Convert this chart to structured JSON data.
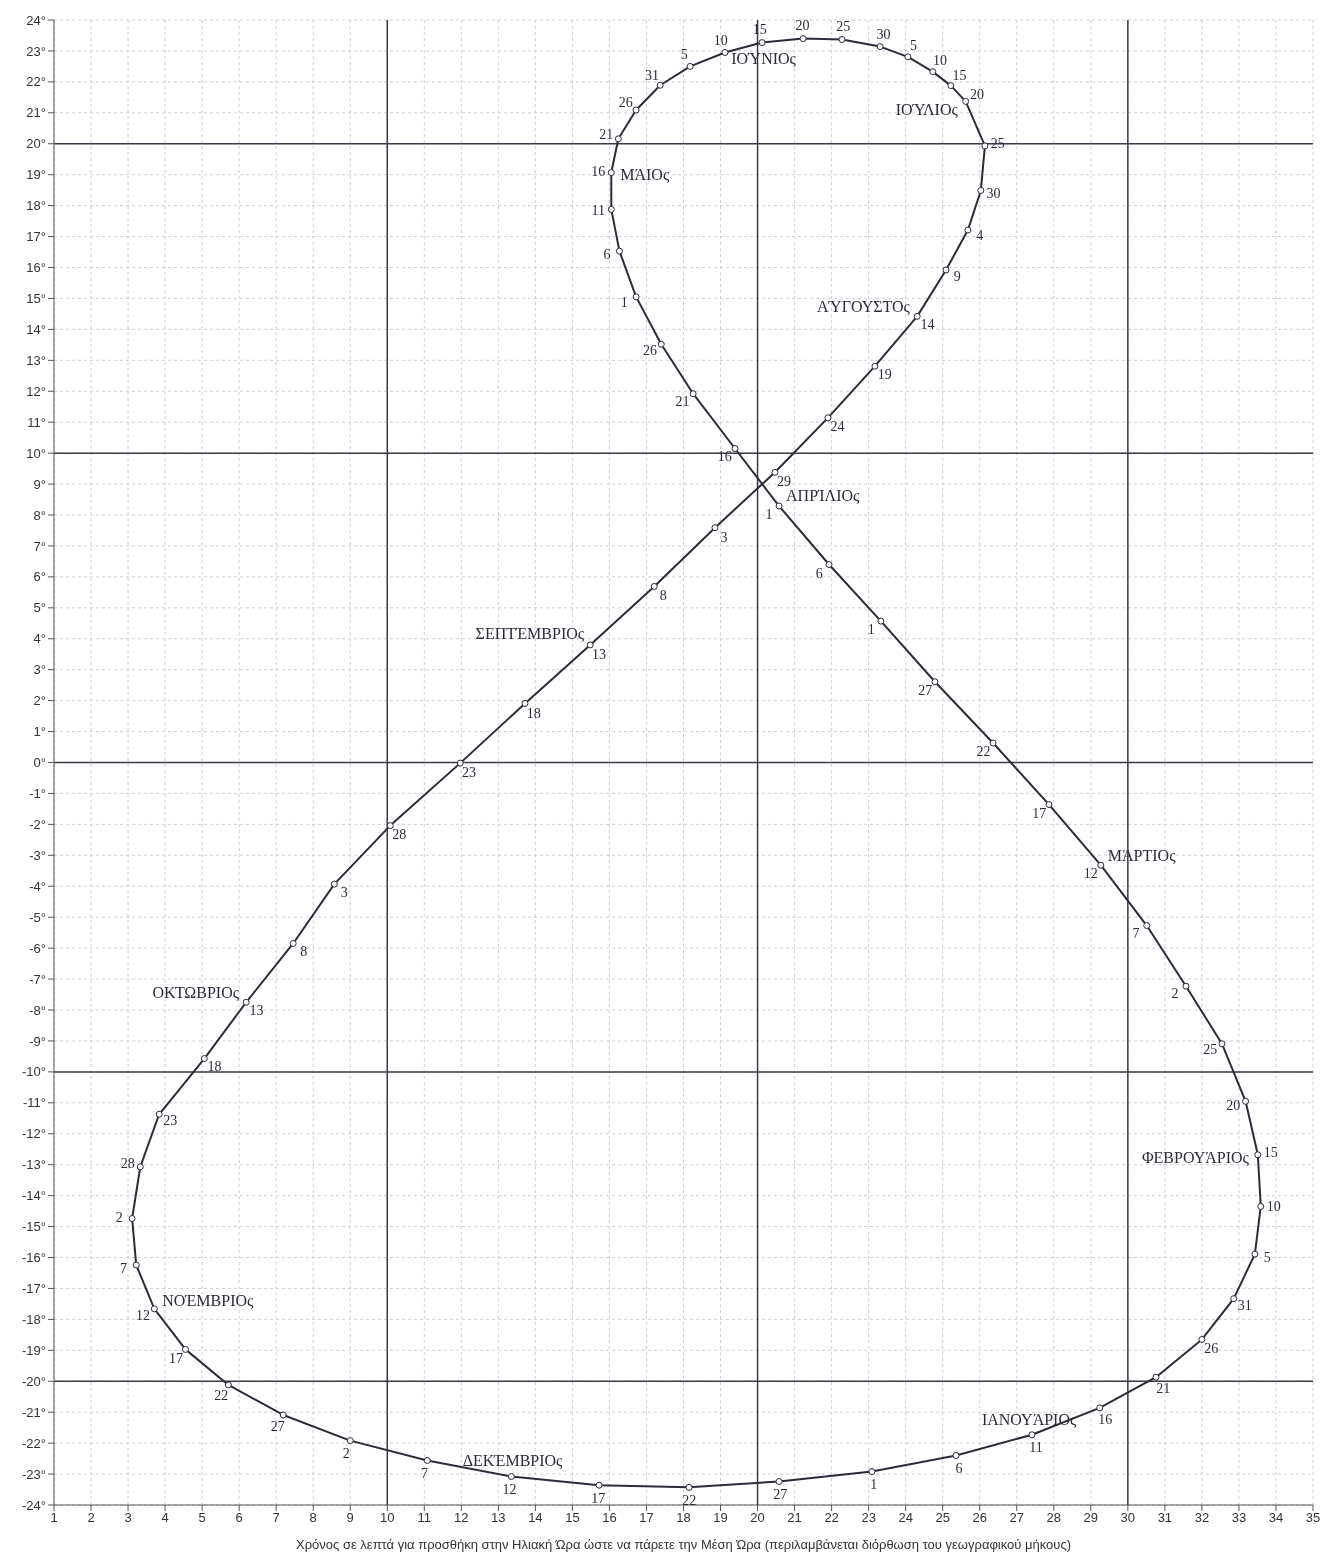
{
  "chart_data": {
    "type": "scatter",
    "xlabel": "Χρόνος σε λεπτά για προσθήκη στην Ηλιακή Ώρα ώστε να πάρετε την Μέση Ώρα (περιλαμβάνεται διόρθωση του γεωγραφικού μήκους)",
    "xlim": [
      1,
      35
    ],
    "xticks": [
      1,
      2,
      3,
      4,
      5,
      6,
      7,
      8,
      9,
      10,
      11,
      12,
      13,
      14,
      15,
      16,
      17,
      18,
      19,
      20,
      21,
      22,
      23,
      24,
      25,
      26,
      27,
      28,
      29,
      30,
      31,
      32,
      33,
      34,
      35
    ],
    "ylim": [
      -24,
      24
    ],
    "yticks": [
      {
        "value": -24,
        "label": "-24°"
      },
      {
        "value": -23,
        "label": "-23°"
      },
      {
        "value": -22,
        "label": "-22°"
      },
      {
        "value": -21,
        "label": "-21°"
      },
      {
        "value": -20,
        "label": "-20°"
      },
      {
        "value": -19,
        "label": "-19°"
      },
      {
        "value": -18,
        "label": "-18°"
      },
      {
        "value": -17,
        "label": "-17°"
      },
      {
        "value": -16,
        "label": "-16°"
      },
      {
        "value": -15,
        "label": "-15°"
      },
      {
        "value": -14,
        "label": "-14°"
      },
      {
        "value": -13,
        "label": "-13°"
      },
      {
        "value": -12,
        "label": "-12°"
      },
      {
        "value": -11,
        "label": "-11°"
      },
      {
        "value": -10,
        "label": "-10°"
      },
      {
        "value": -9,
        "label": "-9°"
      },
      {
        "value": -8,
        "label": "-8°"
      },
      {
        "value": -7,
        "label": "-7°"
      },
      {
        "value": -6,
        "label": "-6°"
      },
      {
        "value": -5,
        "label": "-5°"
      },
      {
        "value": -4,
        "label": "-4°"
      },
      {
        "value": -3,
        "label": "-3°"
      },
      {
        "value": -2,
        "label": "-2°"
      },
      {
        "value": -1,
        "label": "-1°"
      },
      {
        "value": 0,
        "label": "0°"
      },
      {
        "value": 1,
        "label": "1°"
      },
      {
        "value": 2,
        "label": "2°"
      },
      {
        "value": 3,
        "label": "3°"
      },
      {
        "value": 4,
        "label": "4°"
      },
      {
        "value": 5,
        "label": "5°"
      },
      {
        "value": 6,
        "label": "6°"
      },
      {
        "value": 7,
        "label": "7°"
      },
      {
        "value": 8,
        "label": "8°"
      },
      {
        "value": 9,
        "label": "9°"
      },
      {
        "value": 10,
        "label": "10°"
      },
      {
        "value": 11,
        "label": "11°"
      },
      {
        "value": 12,
        "label": "12°"
      },
      {
        "value": 13,
        "label": "13°"
      },
      {
        "value": 14,
        "label": "14°"
      },
      {
        "value": 15,
        "label": "15°"
      },
      {
        "value": 16,
        "label": "16°"
      },
      {
        "value": 17,
        "label": "17°"
      },
      {
        "value": 18,
        "label": "18°"
      },
      {
        "value": 19,
        "label": "19°"
      },
      {
        "value": 20,
        "label": "20°"
      },
      {
        "value": 21,
        "label": "21°"
      },
      {
        "value": 22,
        "label": "22°"
      },
      {
        "value": 23,
        "label": "23°"
      },
      {
        "value": 24,
        "label": "24°"
      }
    ],
    "grid": true,
    "marker": "circle",
    "line_style": "solid",
    "series": [
      {
        "color": "#2b2b3a",
        "x": [
          23.09,
          25.36,
          27.41,
          29.24,
          30.76,
          32.0,
          32.86,
          33.43,
          33.59,
          33.51,
          33.18,
          32.54,
          31.57,
          30.51,
          29.27,
          27.87,
          26.36,
          24.79,
          23.33,
          21.93,
          20.58,
          19.39,
          18.26,
          17.4,
          16.72,
          16.27,
          16.05,
          16.05,
          16.24,
          16.72,
          17.37,
          18.18,
          19.12,
          20.12,
          21.23,
          22.28,
          23.31,
          24.06,
          24.73,
          25.22,
          25.62,
          26.14,
          26.03,
          25.68,
          25.09,
          24.31,
          23.17,
          21.9,
          20.47,
          18.85,
          17.21,
          15.48,
          13.72,
          11.97,
          10.08,
          8.57,
          7.46,
          6.19,
          5.06,
          3.84,
          3.33,
          3.11,
          3.22,
          3.71,
          4.55,
          5.71,
          7.19,
          9.0,
          11.08,
          13.35,
          15.72,
          18.15,
          20.58
        ],
        "values": [
          -22.92,
          -22.4,
          -21.73,
          -20.86,
          -19.87,
          -18.65,
          -17.33,
          -15.89,
          -14.35,
          -12.68,
          -10.95,
          -9.09,
          -7.23,
          -5.27,
          -3.32,
          -1.36,
          0.63,
          2.61,
          4.57,
          6.4,
          8.29,
          10.15,
          11.92,
          13.52,
          15.05,
          16.53,
          17.88,
          19.07,
          20.16,
          21.09,
          21.89,
          22.5,
          22.95,
          23.27,
          23.4,
          23.37,
          23.14,
          22.81,
          22.33,
          21.88,
          21.37,
          19.93,
          18.49,
          17.21,
          15.92,
          14.42,
          12.81,
          11.14,
          9.38,
          7.59,
          5.69,
          3.8,
          1.91,
          -0.02,
          -2.04,
          -3.93,
          -5.85,
          -7.75,
          -9.57,
          -11.37,
          -13.07,
          -14.74,
          -16.24,
          -17.66,
          -18.97,
          -20.12,
          -21.09,
          -21.92,
          -22.56,
          -23.08,
          -23.36,
          -23.43,
          -23.24
        ]
      }
    ],
    "annotations": [
      {
        "text": "1",
        "x": 23.09,
        "y": -22.92
      },
      {
        "text": "6",
        "x": 25.36,
        "y": -22.4
      },
      {
        "text": "11",
        "x": 27.41,
        "y": -21.73
      },
      {
        "text": "16",
        "x": 29.24,
        "y": -20.86
      },
      {
        "text": "21",
        "x": 30.76,
        "y": -19.87
      },
      {
        "text": "26",
        "x": 32.0,
        "y": -18.65
      },
      {
        "text": "31",
        "x": 32.86,
        "y": -17.33
      },
      {
        "text": "5",
        "x": 33.43,
        "y": -15.89
      },
      {
        "text": "10",
        "x": 33.59,
        "y": -14.35
      },
      {
        "text": "15",
        "x": 33.51,
        "y": -12.68
      },
      {
        "text": "20",
        "x": 33.18,
        "y": -10.95
      },
      {
        "text": "25",
        "x": 32.54,
        "y": -9.09
      },
      {
        "text": "2",
        "x": 31.57,
        "y": -7.23
      },
      {
        "text": "7",
        "x": 30.51,
        "y": -5.27
      },
      {
        "text": "12",
        "x": 29.27,
        "y": -3.32
      },
      {
        "text": "17",
        "x": 27.87,
        "y": -1.36
      },
      {
        "text": "22",
        "x": 26.36,
        "y": 0.63
      },
      {
        "text": "27",
        "x": 24.79,
        "y": 2.61
      },
      {
        "text": "1",
        "x": 23.33,
        "y": 4.57
      },
      {
        "text": "6",
        "x": 21.93,
        "y": 6.4
      },
      {
        "text": "1",
        "x": 20.58,
        "y": 8.29
      },
      {
        "text": "16",
        "x": 19.39,
        "y": 10.15
      },
      {
        "text": "21",
        "x": 18.26,
        "y": 11.92
      },
      {
        "text": "26",
        "x": 17.4,
        "y": 13.52
      },
      {
        "text": "1",
        "x": 16.72,
        "y": 15.05
      },
      {
        "text": "6",
        "x": 16.27,
        "y": 16.53
      },
      {
        "text": "11",
        "x": 16.05,
        "y": 17.88
      },
      {
        "text": "16",
        "x": 16.05,
        "y": 19.07
      },
      {
        "text": "21",
        "x": 16.24,
        "y": 20.16
      },
      {
        "text": "26",
        "x": 16.72,
        "y": 21.09
      },
      {
        "text": "31",
        "x": 17.37,
        "y": 21.89
      },
      {
        "text": "5",
        "x": 18.18,
        "y": 22.5
      },
      {
        "text": "10",
        "x": 19.12,
        "y": 22.95
      },
      {
        "text": "15",
        "x": 20.12,
        "y": 23.27
      },
      {
        "text": "20",
        "x": 21.23,
        "y": 23.4
      },
      {
        "text": "25",
        "x": 22.28,
        "y": 23.37
      },
      {
        "text": "30",
        "x": 23.31,
        "y": 23.14
      },
      {
        "text": "5",
        "x": 24.06,
        "y": 22.81
      },
      {
        "text": "10",
        "x": 24.73,
        "y": 22.33
      },
      {
        "text": "15",
        "x": 25.22,
        "y": 21.88
      },
      {
        "text": "20",
        "x": 25.62,
        "y": 21.37
      },
      {
        "text": "25",
        "x": 26.14,
        "y": 19.93
      },
      {
        "text": "30",
        "x": 26.03,
        "y": 18.49
      },
      {
        "text": "4",
        "x": 25.68,
        "y": 17.21
      },
      {
        "text": "9",
        "x": 25.09,
        "y": 15.92
      },
      {
        "text": "14",
        "x": 24.31,
        "y": 14.42
      },
      {
        "text": "19",
        "x": 23.17,
        "y": 12.81
      },
      {
        "text": "24",
        "x": 21.9,
        "y": 11.14
      },
      {
        "text": "29",
        "x": 20.47,
        "y": 9.38
      },
      {
        "text": "3",
        "x": 18.85,
        "y": 7.59
      },
      {
        "text": "8",
        "x": 17.21,
        "y": 5.69
      },
      {
        "text": "13",
        "x": 15.48,
        "y": 3.8
      },
      {
        "text": "18",
        "x": 13.72,
        "y": 1.91
      },
      {
        "text": "23",
        "x": 11.97,
        "y": -0.02
      },
      {
        "text": "28",
        "x": 10.08,
        "y": -2.04
      },
      {
        "text": "3",
        "x": 8.57,
        "y": -3.93
      },
      {
        "text": "8",
        "x": 7.46,
        "y": -5.85
      },
      {
        "text": "13",
        "x": 6.19,
        "y": -7.75
      },
      {
        "text": "18",
        "x": 5.06,
        "y": -9.57
      },
      {
        "text": "23",
        "x": 3.84,
        "y": -11.37
      },
      {
        "text": "28",
        "x": 3.33,
        "y": -13.07
      },
      {
        "text": "2",
        "x": 3.11,
        "y": -14.74
      },
      {
        "text": "7",
        "x": 3.22,
        "y": -16.24
      },
      {
        "text": "12",
        "x": 3.71,
        "y": -17.66
      },
      {
        "text": "17",
        "x": 4.55,
        "y": -18.97
      },
      {
        "text": "22",
        "x": 5.71,
        "y": -20.12
      },
      {
        "text": "27",
        "x": 7.19,
        "y": -21.09
      },
      {
        "text": "2",
        "x": 9.0,
        "y": -21.92
      },
      {
        "text": "7",
        "x": 11.08,
        "y": -22.56
      },
      {
        "text": "12",
        "x": 13.35,
        "y": -23.08
      },
      {
        "text": "17",
        "x": 15.72,
        "y": -23.36
      },
      {
        "text": "22",
        "x": 18.15,
        "y": -23.43
      },
      {
        "text": "27",
        "x": 20.58,
        "y": -23.24
      },
      {
        "text": "ΙΟΎΝΙΟς",
        "x": 20.12,
        "y": 23.27
      },
      {
        "text": "ΙΟΎΛΙΟς",
        "x": 25.62,
        "y": 21.37
      },
      {
        "text": "ΜΆΙΟς",
        "x": 16.05,
        "y": 19.07
      },
      {
        "text": "ΑΎΓΟΥΣΤΟς",
        "x": 24.31,
        "y": 14.42
      },
      {
        "text": "ΑΠΡΊΛΙΟς",
        "x": 20.58,
        "y": 8.29
      },
      {
        "text": "ΣΕΠΤΈΜΒΡΙΟς",
        "x": 15.48,
        "y": 3.8
      },
      {
        "text": "ΜΆΡΤΙΟς",
        "x": 29.27,
        "y": -3.32
      },
      {
        "text": "ΟΚΤΩΒΡΙΟς",
        "x": 6.19,
        "y": -7.75
      },
      {
        "text": "ΦΕΒΡΟΥΆΡΙΟς",
        "x": 33.51,
        "y": -12.68
      },
      {
        "text": "ΝΟΈΜΒΡΙΟς",
        "x": 3.71,
        "y": -17.66
      },
      {
        "text": "ΙΑΝΟΥΆΡΙΟς",
        "x": 27.41,
        "y": -21.73
      },
      {
        "text": "ΔΕΚΈΜΒΡΙΟς",
        "x": 13.35,
        "y": -23.08
      }
    ]
  }
}
